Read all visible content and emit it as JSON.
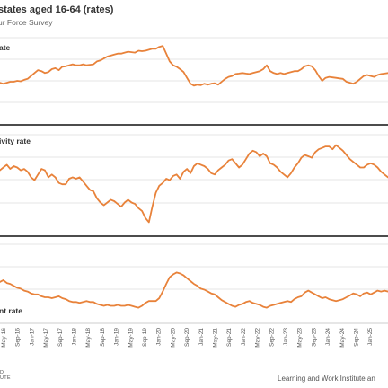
{
  "header": {
    "title": "states aged 16-64 (rates)",
    "subtitle": "ur Force Survey"
  },
  "footer": {
    "logo_text_line1": "D",
    "logo_text_line2": "UTE",
    "credit": "Learning and Work Institute an"
  },
  "colors": {
    "line": "#E8823A",
    "divider": "#111111",
    "grid": "#dddddd"
  },
  "chart_data": [
    {
      "type": "line",
      "panel_label": "ate",
      "x_ticks": [
        "May-16",
        "Sep-16",
        "Jan-17",
        "May-17",
        "Sep-17",
        "Jan-18",
        "May-18",
        "Sep-18",
        "Jan-19",
        "May-19",
        "Sep-19",
        "Jan-20",
        "May-20",
        "Sep-20",
        "Jan-21",
        "May-21",
        "Sep-21",
        "Jan-22",
        "May-22",
        "Sep-22",
        "Jan-23",
        "May-23",
        "Sep-23",
        "Jan-24",
        "May-24",
        "Sep-24",
        "Jan-25"
      ],
      "series": [
        {
          "values": [
            0.2,
            0.22,
            0.2,
            0.22,
            0.24,
            0.24,
            0.26,
            0.25,
            0.28,
            0.3,
            0.36,
            0.42,
            0.48,
            0.46,
            0.42,
            0.44,
            0.5,
            0.52,
            0.48,
            0.55,
            0.56,
            0.58,
            0.6,
            0.58,
            0.58,
            0.6,
            0.58,
            0.59,
            0.6,
            0.66,
            0.68,
            0.72,
            0.76,
            0.78,
            0.8,
            0.82,
            0.82,
            0.84,
            0.86,
            0.85,
            0.84,
            0.88,
            0.87,
            0.88,
            0.9,
            0.92,
            0.92,
            0.96,
            0.98,
            0.82,
            0.66,
            0.58,
            0.55,
            0.5,
            0.44,
            0.32,
            0.2,
            0.16,
            0.18,
            0.17,
            0.2,
            0.18,
            0.2,
            0.21,
            0.18,
            0.24,
            0.3,
            0.34,
            0.36,
            0.4,
            0.41,
            0.42,
            0.41,
            0.4,
            0.42,
            0.44,
            0.46,
            0.5,
            0.58,
            0.46,
            0.42,
            0.4,
            0.42,
            0.4,
            0.42,
            0.44,
            0.46,
            0.46,
            0.5,
            0.56,
            0.58,
            0.56,
            0.48,
            0.36,
            0.26,
            0.32,
            0.34,
            0.33,
            0.32,
            0.31,
            0.3,
            0.24,
            0.22,
            0.2,
            0.24,
            0.3,
            0.36,
            0.38,
            0.36,
            0.34,
            0.38,
            0.4,
            0.41,
            0.42
          ]
        }
      ]
    },
    {
      "type": "line",
      "panel_label": "ivity rate",
      "x_ticks": [
        "May-16",
        "Sep-16",
        "Jan-17",
        "May-17",
        "Sep-17",
        "Jan-18",
        "May-18",
        "Sep-18",
        "Jan-19",
        "May-19",
        "Sep-19",
        "Jan-20",
        "May-20",
        "Sep-20",
        "Jan-21",
        "May-21",
        "Sep-21",
        "Jan-22",
        "May-22",
        "Sep-22",
        "Jan-23",
        "May-23",
        "Sep-23",
        "Jan-24",
        "May-24",
        "Sep-24",
        "Jan-25"
      ],
      "series": [
        {
          "values": [
            0.7,
            0.62,
            0.66,
            0.7,
            0.64,
            0.68,
            0.66,
            0.62,
            0.64,
            0.6,
            0.52,
            0.48,
            0.56,
            0.64,
            0.62,
            0.52,
            0.56,
            0.52,
            0.44,
            0.42,
            0.42,
            0.5,
            0.52,
            0.5,
            0.52,
            0.46,
            0.4,
            0.34,
            0.32,
            0.22,
            0.16,
            0.12,
            0.16,
            0.2,
            0.18,
            0.14,
            0.1,
            0.16,
            0.2,
            0.16,
            0.14,
            0.08,
            0.04,
            -0.06,
            -0.12,
            0.1,
            0.3,
            0.4,
            0.44,
            0.5,
            0.48,
            0.54,
            0.56,
            0.5,
            0.6,
            0.64,
            0.58,
            0.68,
            0.72,
            0.7,
            0.68,
            0.64,
            0.58,
            0.56,
            0.62,
            0.66,
            0.7,
            0.76,
            0.78,
            0.72,
            0.66,
            0.7,
            0.78,
            0.86,
            0.9,
            0.88,
            0.82,
            0.86,
            0.82,
            0.72,
            0.7,
            0.66,
            0.6,
            0.56,
            0.52,
            0.58,
            0.66,
            0.72,
            0.8,
            0.84,
            0.82,
            0.8,
            0.88,
            0.92,
            0.94,
            0.96,
            0.96,
            0.92,
            0.98,
            0.94,
            0.9,
            0.84,
            0.78,
            0.74,
            0.7,
            0.66,
            0.66,
            0.7,
            0.72,
            0.7,
            0.66,
            0.6,
            0.56,
            0.52
          ]
        }
      ]
    },
    {
      "type": "line",
      "panel_label": "nt rate",
      "x_ticks": [
        "May-16",
        "Sep-16",
        "Jan-17",
        "May-17",
        "Sep-17",
        "Jan-18",
        "May-18",
        "Sep-18",
        "Jan-19",
        "May-19",
        "Sep-19",
        "Jan-20",
        "May-20",
        "Sep-20",
        "Jan-21",
        "May-21",
        "Sep-21",
        "Jan-22",
        "May-22",
        "Sep-22",
        "Jan-23",
        "May-23",
        "Sep-23",
        "Jan-24",
        "May-24",
        "Sep-24",
        "Jan-25"
      ],
      "series": [
        {
          "values": [
            0.72,
            0.66,
            0.7,
            0.64,
            0.62,
            0.58,
            0.54,
            0.52,
            0.48,
            0.46,
            0.42,
            0.4,
            0.4,
            0.36,
            0.34,
            0.34,
            0.32,
            0.34,
            0.36,
            0.32,
            0.3,
            0.26,
            0.24,
            0.24,
            0.22,
            0.24,
            0.26,
            0.24,
            0.24,
            0.2,
            0.18,
            0.16,
            0.18,
            0.16,
            0.16,
            0.18,
            0.16,
            0.16,
            0.18,
            0.16,
            0.14,
            0.12,
            0.16,
            0.22,
            0.26,
            0.26,
            0.26,
            0.32,
            0.46,
            0.62,
            0.76,
            0.82,
            0.86,
            0.84,
            0.8,
            0.74,
            0.68,
            0.62,
            0.58,
            0.52,
            0.5,
            0.46,
            0.42,
            0.4,
            0.34,
            0.28,
            0.24,
            0.2,
            0.16,
            0.14,
            0.18,
            0.2,
            0.24,
            0.26,
            0.22,
            0.2,
            0.18,
            0.14,
            0.12,
            0.16,
            0.18,
            0.2,
            0.22,
            0.24,
            0.26,
            0.24,
            0.3,
            0.34,
            0.36,
            0.44,
            0.48,
            0.44,
            0.4,
            0.36,
            0.32,
            0.34,
            0.3,
            0.28,
            0.26,
            0.28,
            0.3,
            0.34,
            0.38,
            0.42,
            0.4,
            0.36,
            0.42,
            0.44,
            0.4,
            0.44,
            0.48,
            0.46,
            0.48,
            0.46
          ]
        }
      ]
    }
  ]
}
